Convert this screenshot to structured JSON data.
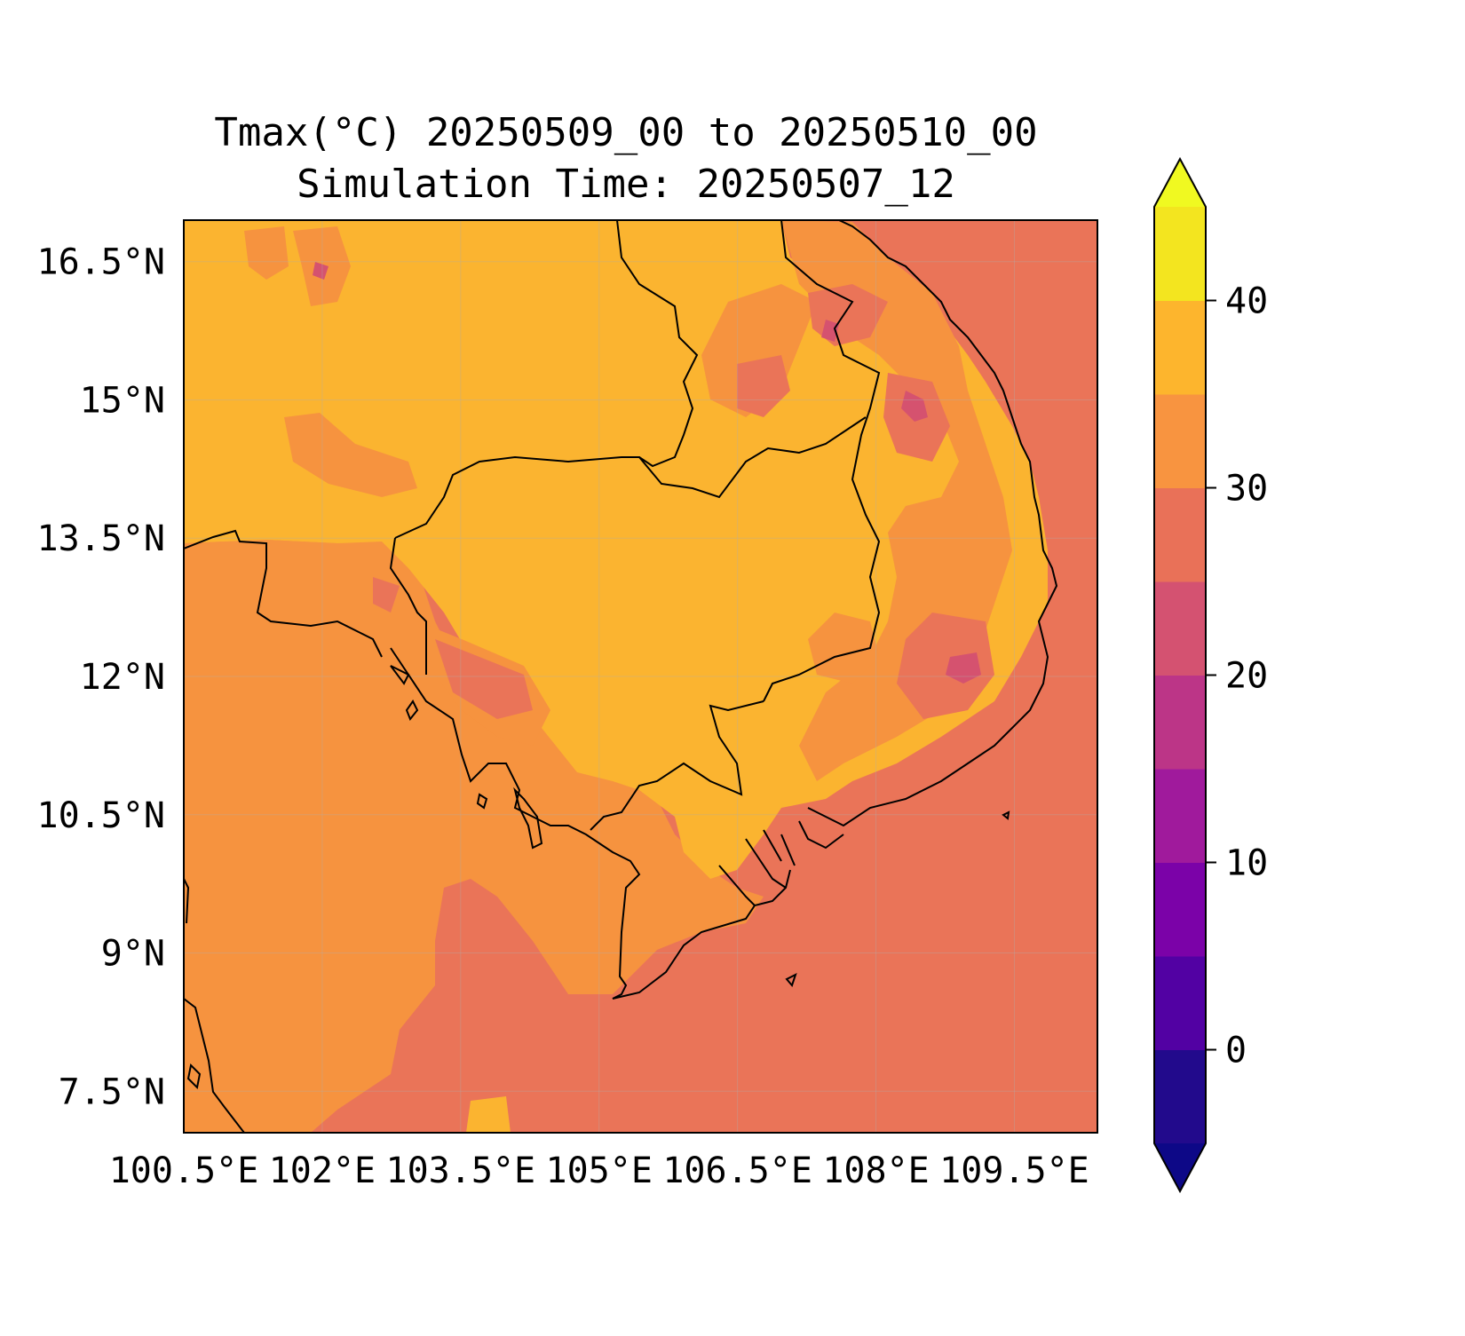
{
  "map": {
    "title_line1": "Tmax(°C) 20250509_00 to 20250510_00",
    "title_line2": "Simulation Time: 20250507_12",
    "lon_ticks": [
      "100.5°E",
      "102°E",
      "103.5°E",
      "105°E",
      "106.5°E",
      "108°E",
      "109.5°E"
    ],
    "lat_ticks": [
      "16.5°N",
      "15°N",
      "13.5°N",
      "12°N",
      "10.5°N",
      "9°N",
      "7.5°N"
    ],
    "lon_values": [
      100.5,
      102,
      103.5,
      105,
      106.5,
      108,
      109.5
    ],
    "lat_values": [
      16.5,
      15,
      13.5,
      12,
      10.5,
      9,
      7.5
    ],
    "extent": {
      "lon_min": 100.5,
      "lon_max": 110.4,
      "lat_min": 7.05,
      "lat_max": 16.95
    }
  },
  "colorbar": {
    "tick_labels": [
      "0",
      "10",
      "20",
      "30",
      "40"
    ],
    "tick_values": [
      0,
      10,
      20,
      30,
      40
    ],
    "levels": [
      -5,
      0,
      5,
      10,
      15,
      20,
      25,
      30,
      35,
      40,
      45
    ],
    "colors": [
      "#220a8c",
      "#5201a3",
      "#7b02a8",
      "#a01a9c",
      "#bc3587",
      "#d45271",
      "#e97158",
      "#f89440",
      "#fdb52d",
      "#f3e51f"
    ],
    "under_color": "#0d0887",
    "over_color": "#f0f921"
  },
  "colors": {
    "sea": "#ea7458",
    "land_warm": "#f6933f",
    "land_hot": "#fbb430",
    "cool": "#d5526f",
    "coastline": "#000000"
  }
}
